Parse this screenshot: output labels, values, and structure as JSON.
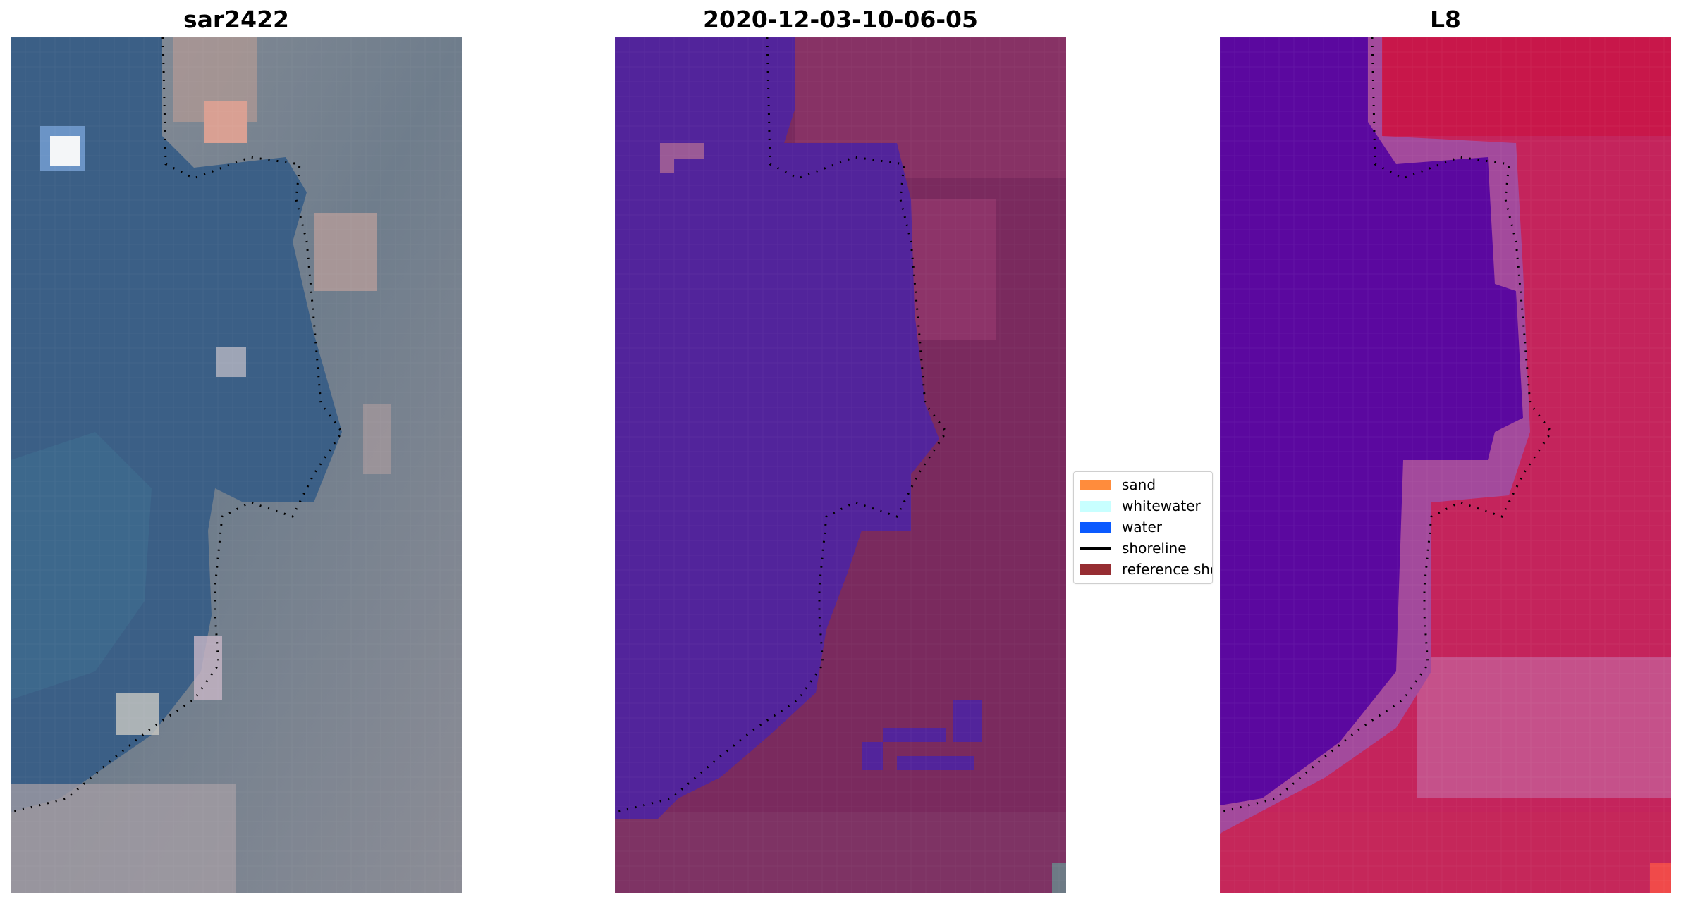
{
  "panels": [
    {
      "title": "sar2422"
    },
    {
      "title": "2020-12-03-10-06-05"
    },
    {
      "title": "L8"
    }
  ],
  "legend": {
    "items": [
      {
        "label": "sand",
        "color": "#ff8c3c",
        "kind": "patch"
      },
      {
        "label": "whitewater",
        "color": "#c8ffff",
        "kind": "patch"
      },
      {
        "label": "water",
        "color": "#0a5aff",
        "kind": "patch"
      },
      {
        "label": "shoreline",
        "color": "#000000",
        "kind": "line"
      },
      {
        "label": "reference shoreline",
        "color": "#962d32",
        "kind": "patch"
      }
    ]
  },
  "colors": {
    "rgb_water": "#3b5f86",
    "rgb_land": "#7e8794",
    "class_water": "#52249b",
    "class_land": "#7a2a5e",
    "ndwi_water": "#5b089f",
    "ndwi_land": "#c4245c",
    "shoreline_dots": "#000000"
  }
}
